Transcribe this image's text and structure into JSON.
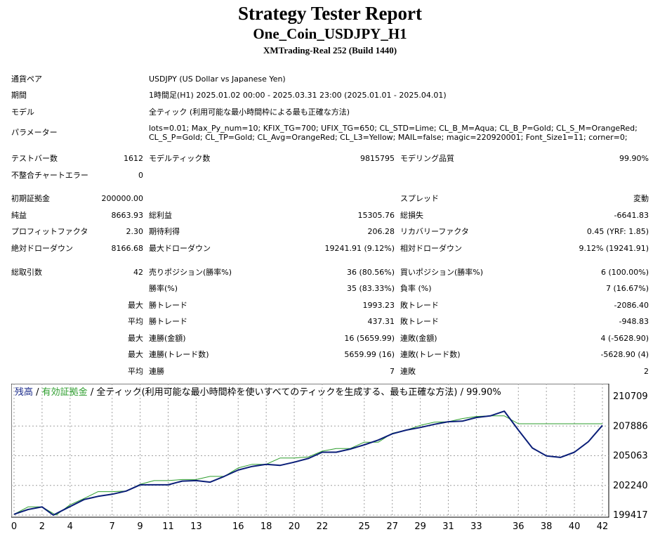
{
  "header": {
    "title": "Strategy Tester Report",
    "subtitle": "One_Coin_USDJPY_H1",
    "server": "XMTrading-Real 252 (Build 1440)"
  },
  "settings": {
    "symbol_label": "通貨ペア",
    "symbol_value": "USDJPY (US Dollar vs Japanese Yen)",
    "period_label": "期間",
    "period_value": "1時間足(H1) 2025.01.02 00:00 - 2025.03.31 23:00 (2025.01.01 - 2025.04.01)",
    "model_label": "モデル",
    "model_value": "全ティック (利用可能な最小時間枠による最も正確な方法)",
    "params_label": "パラメーター",
    "params_value": "lots=0.01; Max_Py_num=10; KFIX_TG=700; UFIX_TG=650; CL_STD=Lime; CL_B_M=Aqua; CL_B_P=Gold; CL_S_M=OrangeRed; CL_S_P=Gold; CL_TP=Gold; CL_Avg=OrangeRed; CL_L3=Yellow; MAIL=false; magic=220920001; Font_Size1=11; corner=0;"
  },
  "bars": {
    "test_bars_label": "テストバー数",
    "test_bars_value": "1612",
    "ticks_label": "モデルティック数",
    "ticks_value": "9815795",
    "quality_label": "モデリング品質",
    "quality_value": "99.90%",
    "mismatch_label": "不整合チャートエラー",
    "mismatch_value": "0"
  },
  "results": {
    "deposit_label": "初期証拠金",
    "deposit_value": "200000.00",
    "spread_label": "スプレッド",
    "spread_value": "変動",
    "net_label": "純益",
    "net_value": "8663.93",
    "gross_profit_label": "総利益",
    "gross_profit_value": "15305.76",
    "gross_loss_label": "総損失",
    "gross_loss_value": "-6641.83",
    "pf_label": "プロフィットファクタ",
    "pf_value": "2.30",
    "expected_label": "期待利得",
    "expected_value": "206.28",
    "recovery_label": "リカバリーファクタ",
    "recovery_value": "0.45 (YRF: 1.85)",
    "abs_dd_label": "絶対ドローダウン",
    "abs_dd_value": "8166.68",
    "max_dd_label": "最大ドローダウン",
    "max_dd_value": "19241.91 (9.12%)",
    "rel_dd_label": "相対ドローダウン",
    "rel_dd_value": "9.12% (19241.91)"
  },
  "trades": {
    "total_label": "総取引数",
    "total_value": "42",
    "short_label": "売りポジション(勝率%)",
    "short_value": "36 (80.56%)",
    "long_label": "買いポジション(勝率%)",
    "long_value": "6 (100.00%)",
    "win_rate_label": "勝率(%)",
    "win_rate_value": "35 (83.33%)",
    "loss_rate_label": "負率 (%)",
    "loss_rate_value": "7 (16.67%)",
    "max_prefix": "最大",
    "avg_prefix": "平均",
    "largest_win_label": "勝トレード",
    "largest_win_value": "1993.23",
    "largest_loss_label": "敗トレード",
    "largest_loss_value": "-2086.40",
    "avg_win_label": "勝トレード",
    "avg_win_value": "437.31",
    "avg_loss_label": "敗トレード",
    "avg_loss_value": "-948.83",
    "max_cons_wins_label": "連勝(金額)",
    "max_cons_wins_value": "16 (5659.99)",
    "max_cons_losses_label": "連敗(金額)",
    "max_cons_losses_value": "4 (-5628.90)",
    "max_cons_profit_label": "連勝(トレード数)",
    "max_cons_profit_value": "5659.99 (16)",
    "max_cons_loss_label": "連敗(トレード数)",
    "max_cons_loss_value": "-5628.90 (4)",
    "avg_cons_wins_label": "連勝",
    "avg_cons_wins_value": "7",
    "avg_cons_losses_label": "連敗",
    "avg_cons_losses_value": "2"
  },
  "chart_legend": {
    "balance": "残高",
    "sep1": " / ",
    "equity": "有効証拠金",
    "sep2": " / ",
    "rest": "全ティック(利用可能な最小時間枠を使いすべてのティックを生成する、最も正確な方法)",
    "sep3": " / ",
    "quality": "99.90%"
  },
  "chart_data": {
    "type": "line",
    "x_ticks": [
      0,
      2,
      4,
      7,
      9,
      11,
      13,
      16,
      18,
      20,
      22,
      25,
      27,
      29,
      31,
      33,
      36,
      38,
      40,
      42
    ],
    "y_ticks": [
      210709,
      207886,
      205063,
      202240,
      199417
    ],
    "xlim": [
      0,
      42
    ],
    "ylim": [
      199417,
      211600
    ],
    "grid": true,
    "series": [
      {
        "name": "残高",
        "color": "#0a1e78",
        "x": [
          0,
          1,
          2,
          2.8,
          3.8,
          5,
          6,
          7,
          8,
          9,
          10,
          11,
          12,
          13,
          14,
          15,
          16,
          17,
          18,
          19,
          20,
          21,
          22,
          23,
          24,
          25,
          26,
          27,
          28,
          29,
          30,
          31,
          32,
          33,
          34,
          35,
          36,
          37,
          38,
          39,
          40,
          41,
          42
        ],
        "y": [
          199500,
          199950,
          200200,
          199420,
          200100,
          200900,
          201200,
          201400,
          201700,
          202300,
          202300,
          202300,
          202650,
          202700,
          202550,
          203100,
          203700,
          204050,
          204250,
          204150,
          204450,
          204800,
          205400,
          205400,
          205700,
          206100,
          206550,
          207150,
          207500,
          207750,
          208050,
          208300,
          208350,
          208700,
          208850,
          209300,
          207500,
          205800,
          205050,
          204900,
          205400,
          206400,
          207950
        ]
      },
      {
        "name": "有効証拠金",
        "color": "#2e9e2e",
        "x": [
          0,
          1,
          2,
          3,
          4,
          5,
          6,
          7,
          8,
          9,
          10,
          11,
          12,
          13,
          14,
          15,
          16,
          17,
          18,
          19,
          20,
          21,
          22,
          23,
          24,
          25,
          26,
          27,
          28,
          29,
          30,
          31,
          32,
          33,
          34,
          35,
          36,
          37,
          38,
          39,
          40,
          41,
          42
        ],
        "y": [
          199500,
          200200,
          200200,
          199420,
          200400,
          201000,
          201650,
          201650,
          201700,
          202350,
          202700,
          202700,
          202800,
          202800,
          203100,
          203100,
          203900,
          204250,
          204250,
          204850,
          204850,
          204950,
          205500,
          205750,
          205750,
          206350,
          206350,
          207200,
          207500,
          207950,
          208250,
          208300,
          208600,
          208800,
          208850,
          208850,
          208100,
          208100,
          208100,
          208100,
          208100,
          208100,
          208100
        ]
      }
    ]
  },
  "colors": {
    "balance": "#0a1e78",
    "equity": "#2e9e2e",
    "legend_balance": "#1a2a8a",
    "grid": "#a0a0a0"
  }
}
